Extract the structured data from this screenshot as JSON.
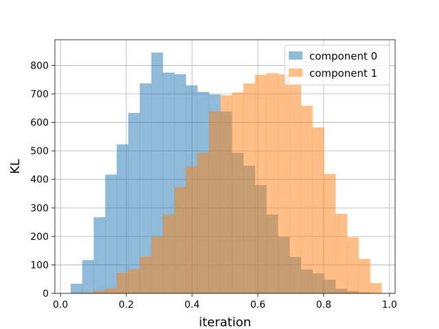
{
  "chart_data": {
    "type": "bar",
    "title": "",
    "xlabel": "iteration",
    "ylabel": "KL",
    "xlim": [
      -0.017,
      1.017
    ],
    "ylim": [
      0,
      890
    ],
    "xticks": [
      0.0,
      0.2,
      0.4,
      0.6,
      0.8,
      1.0
    ],
    "xtick_labels": [
      "0.0",
      "0.2",
      "0.4",
      "0.6",
      "0.8",
      "1.0"
    ],
    "yticks": [
      0,
      100,
      200,
      300,
      400,
      500,
      600,
      700,
      800
    ],
    "ytick_labels": [
      "0",
      "100",
      "200",
      "300",
      "400",
      "500",
      "600",
      "700",
      "800"
    ],
    "grid": true,
    "legend_position": "top-right",
    "series": [
      {
        "name": "component 0",
        "color": "#1f77b4",
        "opacity": 0.5,
        "bin_edges": [
          0.031,
          0.066,
          0.101,
          0.136,
          0.171,
          0.206,
          0.241,
          0.276,
          0.311,
          0.346,
          0.381,
          0.416,
          0.451,
          0.486,
          0.521,
          0.556,
          0.591,
          0.626,
          0.661,
          0.696,
          0.731,
          0.766,
          0.801,
          0.836,
          0.871,
          0.906,
          0.941,
          0.976
        ],
        "counts": [
          34,
          117,
          267,
          417,
          523,
          633,
          737,
          845,
          775,
          769,
          730,
          707,
          698,
          638,
          493,
          448,
          380,
          277,
          198,
          128,
          84,
          70,
          48,
          16,
          8,
          3,
          1
        ]
      },
      {
        "name": "component 1",
        "color": "#ff7f0e",
        "opacity": 0.5,
        "bin_edges": [
          0.031,
          0.066,
          0.101,
          0.136,
          0.171,
          0.206,
          0.241,
          0.276,
          0.311,
          0.346,
          0.381,
          0.416,
          0.451,
          0.486,
          0.521,
          0.556,
          0.591,
          0.626,
          0.661,
          0.696,
          0.731,
          0.766,
          0.801,
          0.836,
          0.871,
          0.906,
          0.941,
          0.976
        ],
        "counts": [
          1,
          3,
          10,
          18,
          72,
          85,
          130,
          200,
          276,
          373,
          446,
          494,
          638,
          695,
          705,
          737,
          767,
          773,
          768,
          738,
          658,
          582,
          419,
          279,
          197,
          121,
          36
        ]
      }
    ]
  }
}
